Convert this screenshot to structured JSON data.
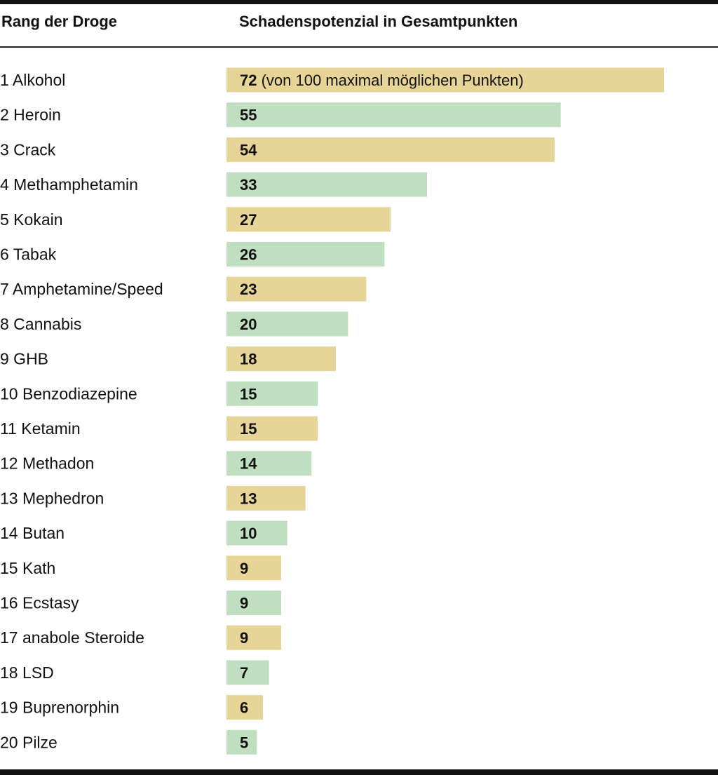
{
  "header": {
    "rank_column": "Rang der Droge",
    "value_column": "Schadenspotenzial in Gesamtpunkten"
  },
  "colors": {
    "odd_bar": "#e6d596",
    "even_bar": "#c0dfc0",
    "text": "#111111",
    "rule": "#111111"
  },
  "chart_data": {
    "type": "bar",
    "orientation": "horizontal",
    "title": "",
    "xlabel": "Schadenspotenzial in Gesamtpunkten",
    "ylabel": "Rang der Droge",
    "xlim": [
      0,
      72
    ],
    "grid": false,
    "legend": "none",
    "first_bar_note": "(von 100 maximal möglichen Punkten)",
    "categories": [
      "1 Alkohol",
      "2 Heroin",
      "3 Crack",
      "4 Methamphetamin",
      "5 Kokain",
      "6 Tabak",
      "7 Amphetamine/Speed",
      "8 Cannabis",
      "9 GHB",
      "10 Benzodiazepine",
      "11 Ketamin",
      "12 Methadon",
      "13 Mephedron",
      "14 Butan",
      "15 Kath",
      "16 Ecstasy",
      "17 anabole Steroide",
      "18 LSD",
      "19 Buprenorphin",
      "20 Pilze"
    ],
    "values": [
      72,
      55,
      54,
      33,
      27,
      26,
      23,
      20,
      18,
      15,
      15,
      14,
      13,
      10,
      9,
      9,
      9,
      7,
      6,
      5
    ]
  }
}
